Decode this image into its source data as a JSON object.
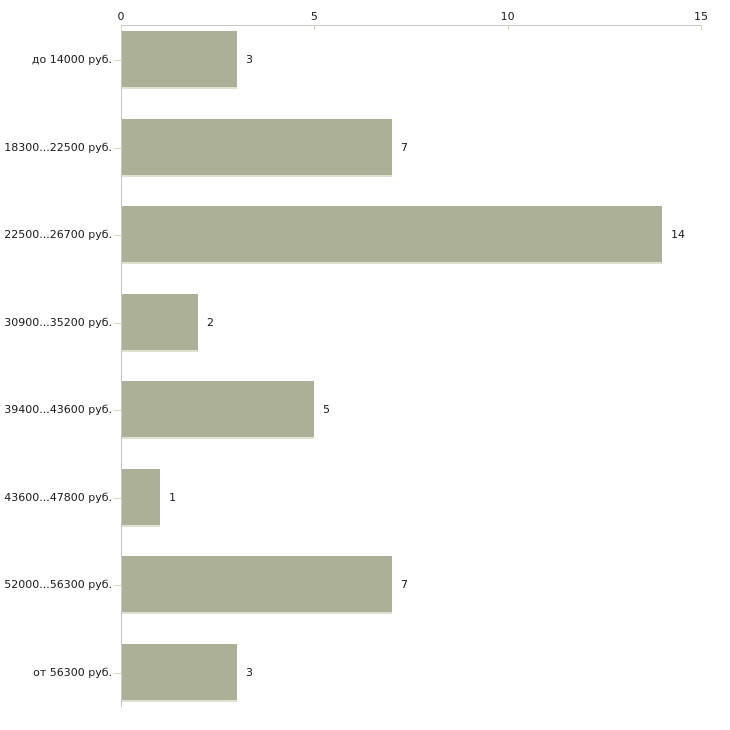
{
  "chart_data": {
    "type": "bar",
    "orientation": "horizontal",
    "title": "",
    "xlabel": "",
    "ylabel": "",
    "axis_position": "top",
    "grid": false,
    "legend": false,
    "xlim": [
      0,
      15
    ],
    "x_ticks": [
      0,
      5,
      10,
      15
    ],
    "categories": [
      "до 14000 руб.",
      "18300...22500 руб.",
      "22500...26700 руб.",
      "30900...35200 руб.",
      "39400...43600 руб.",
      "43600...47800 руб.",
      "52000...56300 руб.",
      "от 56300 руб."
    ],
    "values": [
      3,
      7,
      14,
      2,
      5,
      1,
      7,
      3
    ]
  },
  "colors": {
    "background": "#ffffff",
    "bar_fill": "#abb096",
    "bar_bottom_edge": "#dfe2d0",
    "axis_line": "#c6c6c6",
    "tick_mark": "#d8dab6",
    "text": "#1c1c1c"
  }
}
